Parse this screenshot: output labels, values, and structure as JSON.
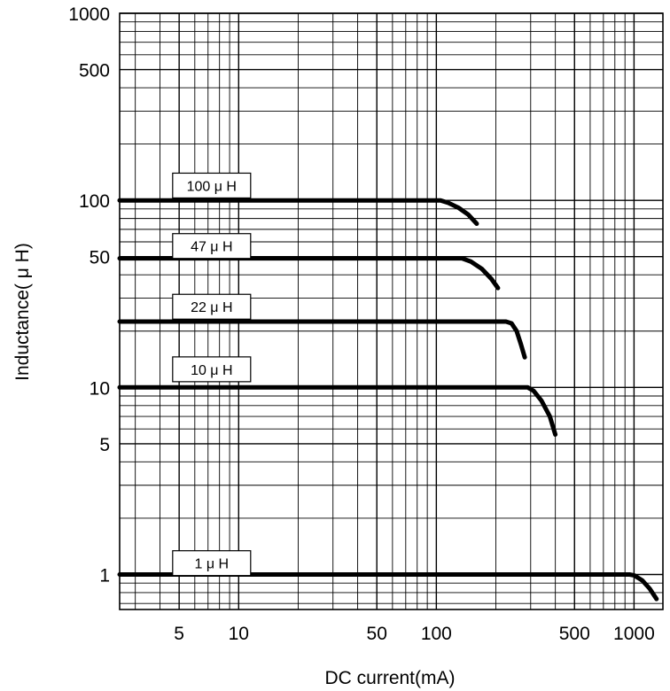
{
  "chart_data": {
    "type": "line",
    "xlabel": "DC current(mA)",
    "ylabel": "Inductance( μ H)",
    "x_scale": "log",
    "y_scale": "log",
    "xlim": [
      2.5,
      1400
    ],
    "ylim": [
      0.65,
      1000
    ],
    "grid": true,
    "legend": "none",
    "x_ticks": [
      {
        "value": 5,
        "label": "5"
      },
      {
        "value": 10,
        "label": "10"
      },
      {
        "value": 50,
        "label": "50"
      },
      {
        "value": 100,
        "label": "100"
      },
      {
        "value": 500,
        "label": "500"
      },
      {
        "value": 1000,
        "label": "1000"
      }
    ],
    "y_ticks": [
      {
        "value": 1,
        "label": "1"
      },
      {
        "value": 5,
        "label": "5"
      },
      {
        "value": 10,
        "label": "10"
      },
      {
        "value": 50,
        "label": "50"
      },
      {
        "value": 100,
        "label": "100"
      },
      {
        "value": 500,
        "label": "500"
      },
      {
        "value": 1000,
        "label": "1000"
      }
    ],
    "series": [
      {
        "name": "100 μ H",
        "label_at": [
          7.3,
          120
        ],
        "points": [
          [
            2.5,
            100
          ],
          [
            105,
            100
          ],
          [
            115,
            97
          ],
          [
            130,
            91
          ],
          [
            145,
            84
          ],
          [
            160,
            75
          ]
        ]
      },
      {
        "name": "47 μ H",
        "label_at": [
          7.3,
          57
        ],
        "points": [
          [
            2.5,
            49
          ],
          [
            135,
            49
          ],
          [
            150,
            47
          ],
          [
            170,
            43
          ],
          [
            190,
            38
          ],
          [
            205,
            34
          ]
        ]
      },
      {
        "name": "22 μ H",
        "label_at": [
          7.3,
          27
        ],
        "points": [
          [
            2.5,
            22.5
          ],
          [
            225,
            22.5
          ],
          [
            240,
            22
          ],
          [
            255,
            20
          ],
          [
            268,
            17
          ],
          [
            280,
            14.5
          ]
        ]
      },
      {
        "name": "10 μ H",
        "label_at": [
          7.3,
          12.5
        ],
        "points": [
          [
            2.5,
            10
          ],
          [
            290,
            10
          ],
          [
            310,
            9.6
          ],
          [
            340,
            8.5
          ],
          [
            375,
            7
          ],
          [
            400,
            5.6
          ]
        ]
      },
      {
        "name": "1 μ H",
        "label_at": [
          7.3,
          1.15
        ],
        "points": [
          [
            2.5,
            1
          ],
          [
            950,
            1
          ],
          [
            1000,
            0.99
          ],
          [
            1100,
            0.93
          ],
          [
            1200,
            0.84
          ],
          [
            1300,
            0.74
          ]
        ]
      }
    ]
  }
}
